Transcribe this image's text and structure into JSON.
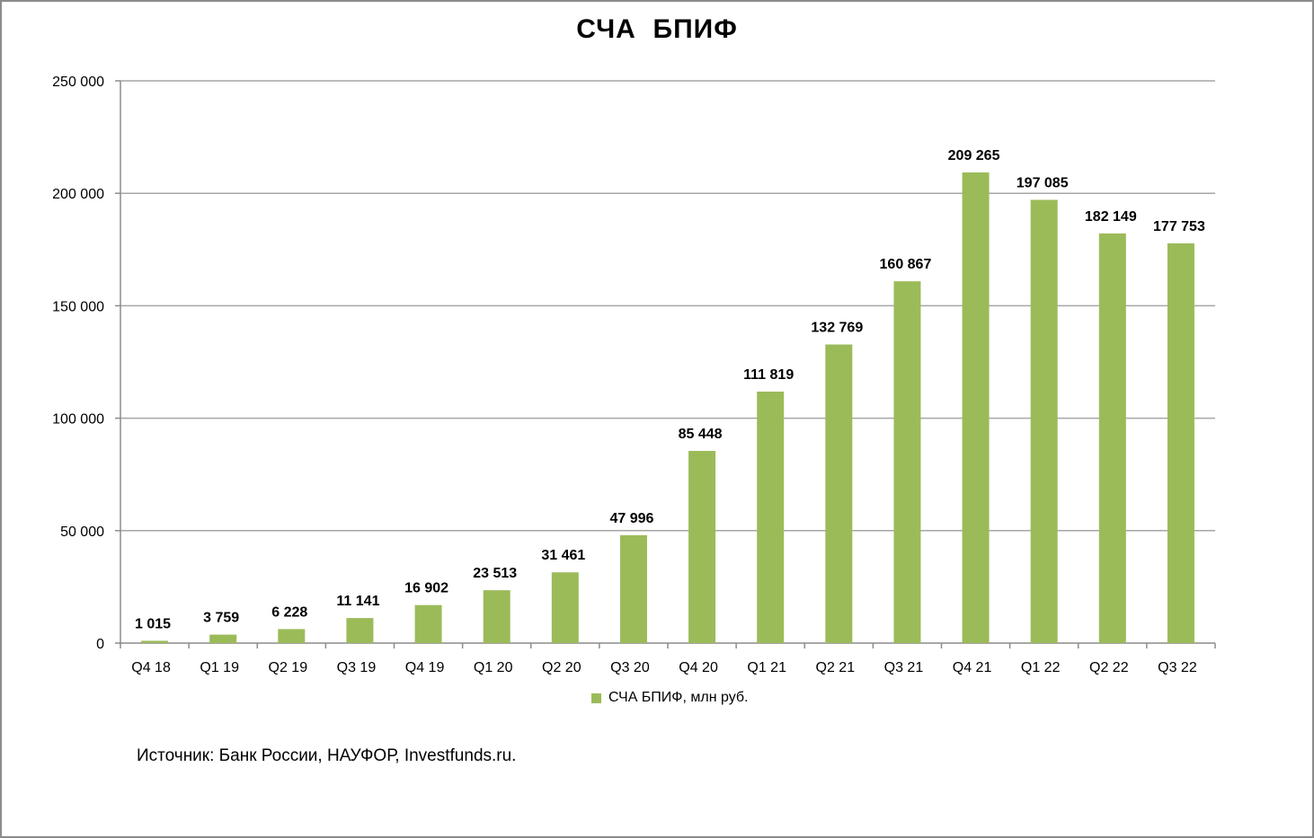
{
  "chart_data": {
    "type": "bar",
    "title": "СЧА  БПИФ",
    "categories": [
      "Q4 18",
      "Q1 19",
      "Q2 19",
      "Q3 19",
      "Q4 19",
      "Q1 20",
      "Q2 20",
      "Q3 20",
      "Q4 20",
      "Q1 21",
      "Q2 21",
      "Q3 21",
      "Q4 21",
      "Q1 22",
      "Q2 22",
      "Q3 22"
    ],
    "series": [
      {
        "name": "СЧА БПИФ,  млн руб.",
        "values": [
          1015,
          3759,
          6228,
          11141,
          16902,
          23513,
          31461,
          47996,
          85448,
          111819,
          132769,
          160867,
          209265,
          197085,
          182149,
          177753
        ],
        "labels": [
          "1 015",
          "3 759",
          "6 228",
          "11 141",
          "16 902",
          "23 513",
          "31 461",
          "47 996",
          "85 448",
          "111 819",
          "132 769",
          "160 867",
          "209 265",
          "197 085",
          "182 149",
          "177 753"
        ],
        "color": "#9bbb59"
      }
    ],
    "ylim": [
      0,
      250000
    ],
    "yticks": [
      0,
      50000,
      100000,
      150000,
      200000,
      250000
    ],
    "ytick_labels": [
      "0",
      "50 000",
      "100 000",
      "150 000",
      "200 000",
      "250 000"
    ],
    "xlabel": "",
    "ylabel": "",
    "grid": true,
    "legend_position": "bottom"
  },
  "legend": {
    "label": "СЧА БПИФ,  млн руб."
  },
  "source": "Источник: Банк России, НАУФОР, Investfunds.ru.",
  "colors": {
    "bar": "#9bbb59",
    "grid": "#a6a6a6",
    "axis": "#8c8c8c"
  }
}
